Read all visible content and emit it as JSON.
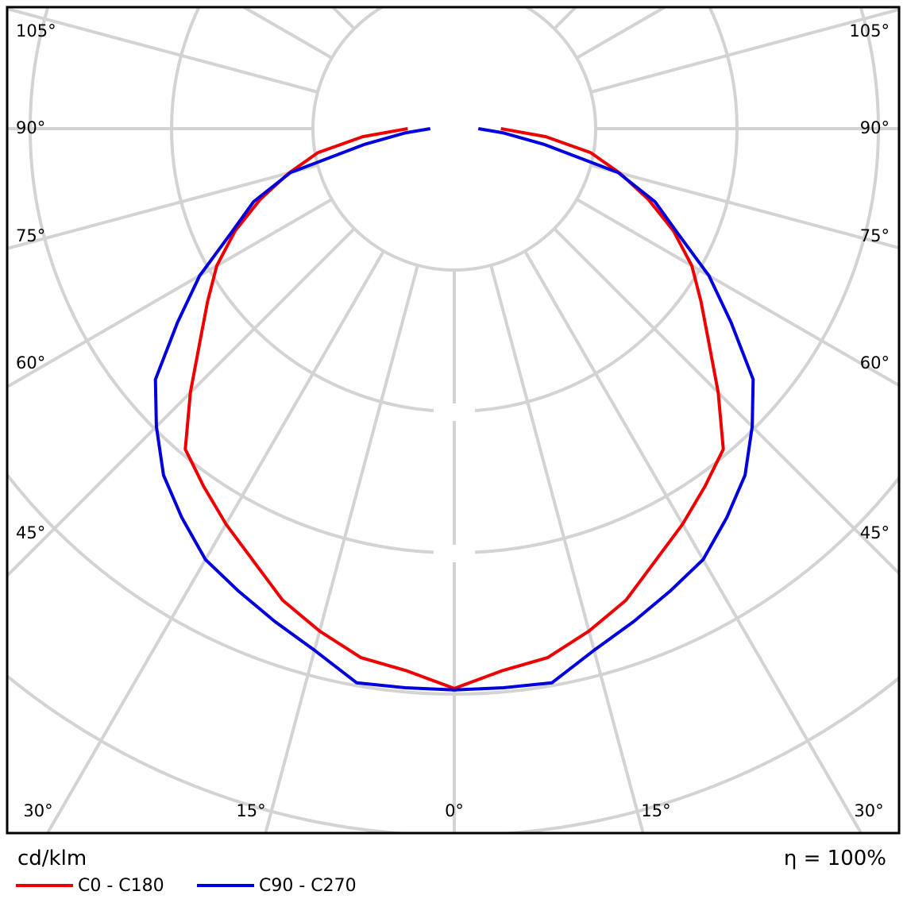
{
  "chart_data": {
    "type": "polar",
    "unit_label": "cd/klm",
    "efficiency_label": "η = 100%",
    "angle_unit": "degrees",
    "angle_tick_labels": [
      "105°",
      "90°",
      "75°",
      "60°",
      "45°",
      "30°",
      "15°",
      "0°",
      "15°",
      "30°",
      "45°",
      "60°",
      "75°",
      "90°",
      "105°"
    ],
    "radial_ring_count": 5,
    "radial_scale_labels_shown": false,
    "grid": true,
    "legend_placement": "bottom-left",
    "angles": [
      0,
      5,
      10,
      15,
      20,
      25,
      30,
      35,
      40,
      45,
      50,
      55,
      60,
      65,
      70,
      75,
      80,
      85,
      90
    ],
    "series": [
      {
        "name": "C0 - C180",
        "color": "#ee0000",
        "values": [
          3.96,
          3.85,
          3.8,
          3.68,
          3.55,
          3.37,
          3.23,
          3.09,
          2.96,
          2.64,
          2.35,
          2.13,
          1.94,
          1.71,
          1.46,
          1.21,
          0.98,
          0.65,
          0.33
        ]
      },
      {
        "name": "C90 - C270",
        "color": "#0000dd",
        "values": [
          3.97,
          3.97,
          3.98,
          3.82,
          3.71,
          3.61,
          3.52,
          3.36,
          3.2,
          2.98,
          2.76,
          2.39,
          2.08,
          1.74,
          1.51,
          1.2,
          0.65,
          0.35,
          0.17
        ]
      }
    ],
    "note_radial_units": "ring intervals"
  }
}
